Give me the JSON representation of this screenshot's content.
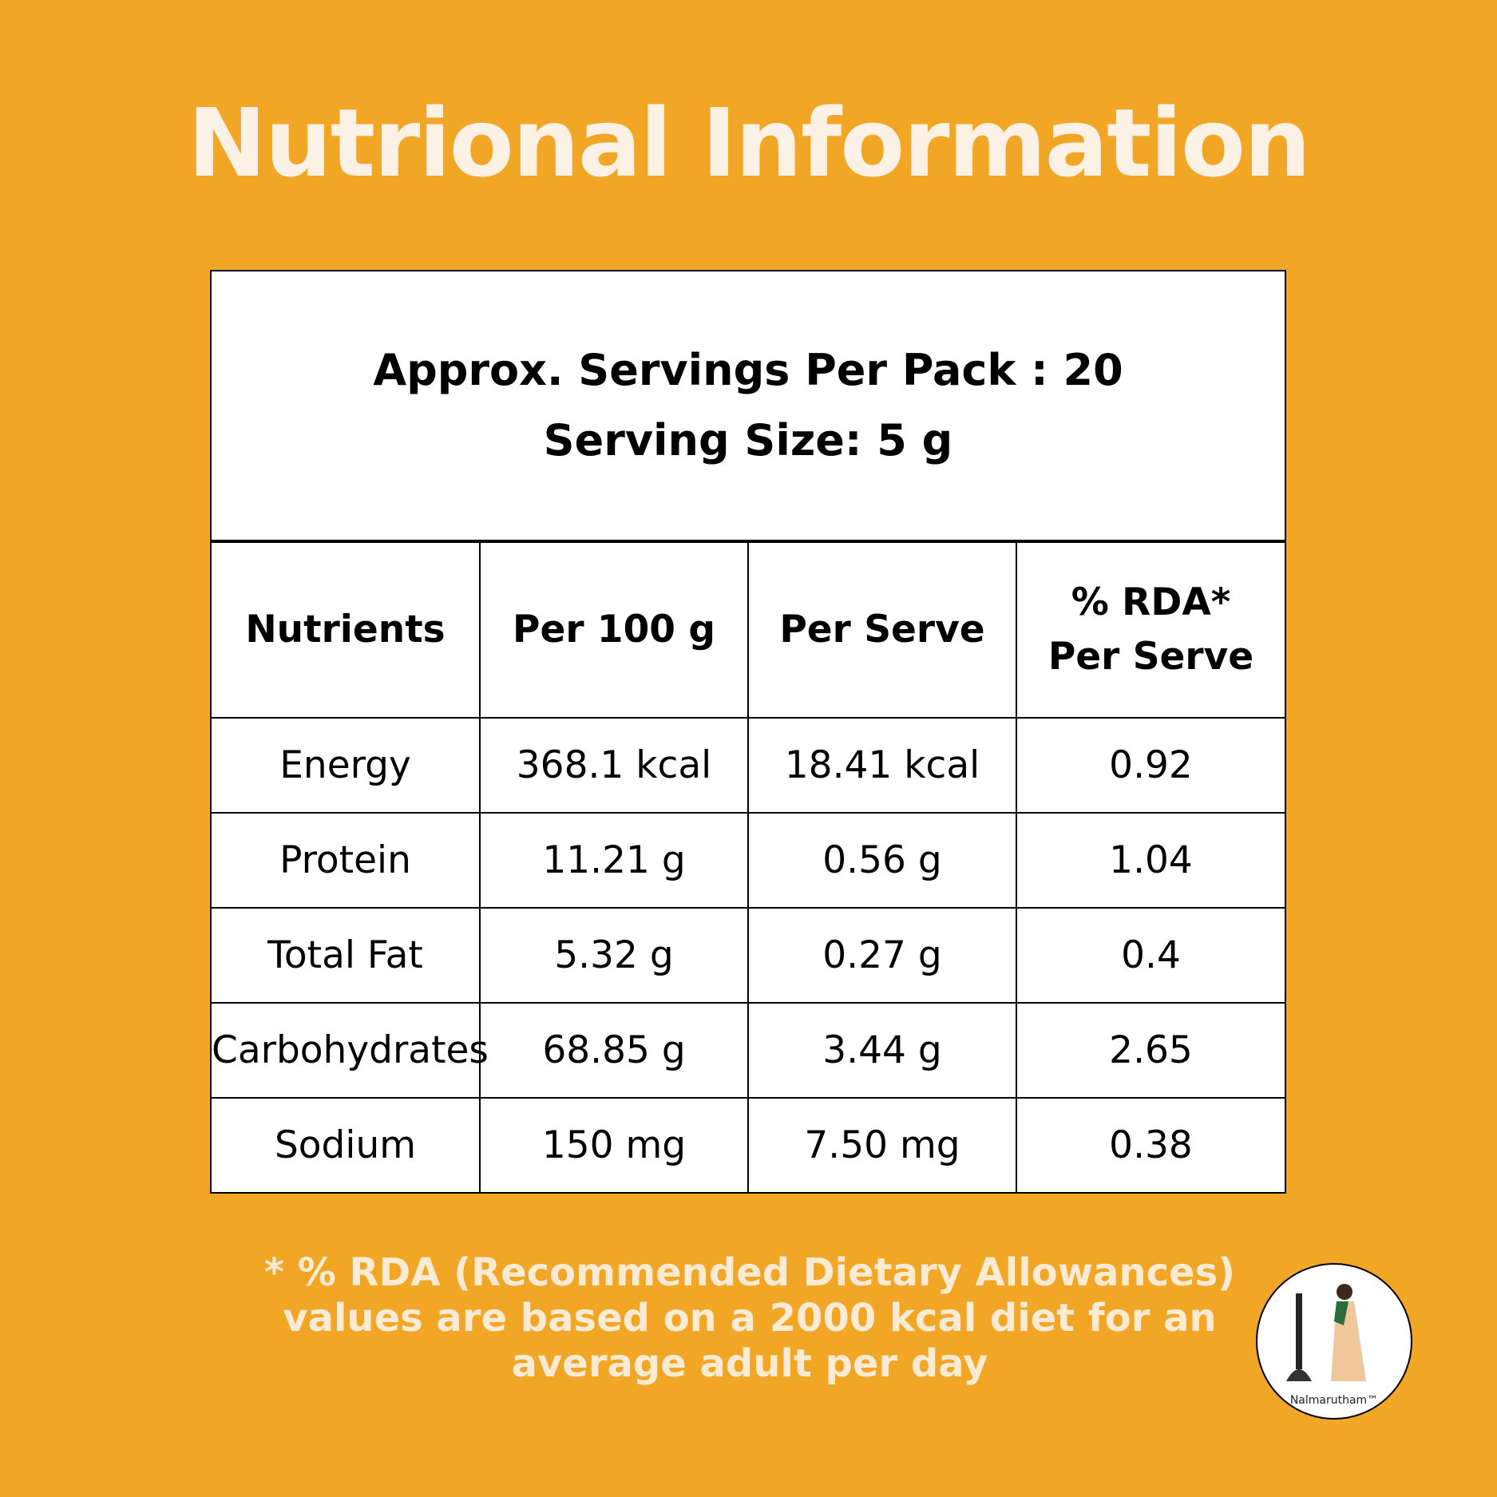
{
  "title": "Nutrional Information",
  "table": {
    "header_lines": [
      "Approx. Servings Per Pack : 20",
      "Serving Size: 5 g"
    ],
    "columns": [
      [
        "Nutrients"
      ],
      [
        "Per 100 g"
      ],
      [
        "Per Serve"
      ],
      [
        "% RDA*",
        "Per Serve"
      ]
    ],
    "rows": [
      [
        "Energy",
        "368.1 kcal",
        "18.41 kcal",
        "0.92"
      ],
      [
        "Protein",
        "11.21 g",
        "0.56 g",
        "1.04"
      ],
      [
        "Total Fat",
        "5.32 g",
        "0.27 g",
        "0.4"
      ],
      [
        "Carbohydrates",
        "68.85 g",
        "3.44 g",
        "2.65"
      ],
      [
        "Sodium",
        "150 mg",
        "7.50 mg",
        "0.38"
      ]
    ]
  },
  "footnote": [
    "* % RDA (Recommended Dietary Allowances)",
    "values are based on a 2000 kcal diet for an",
    "average adult per day"
  ],
  "logo": {
    "text": "Nalmarutham™"
  }
}
